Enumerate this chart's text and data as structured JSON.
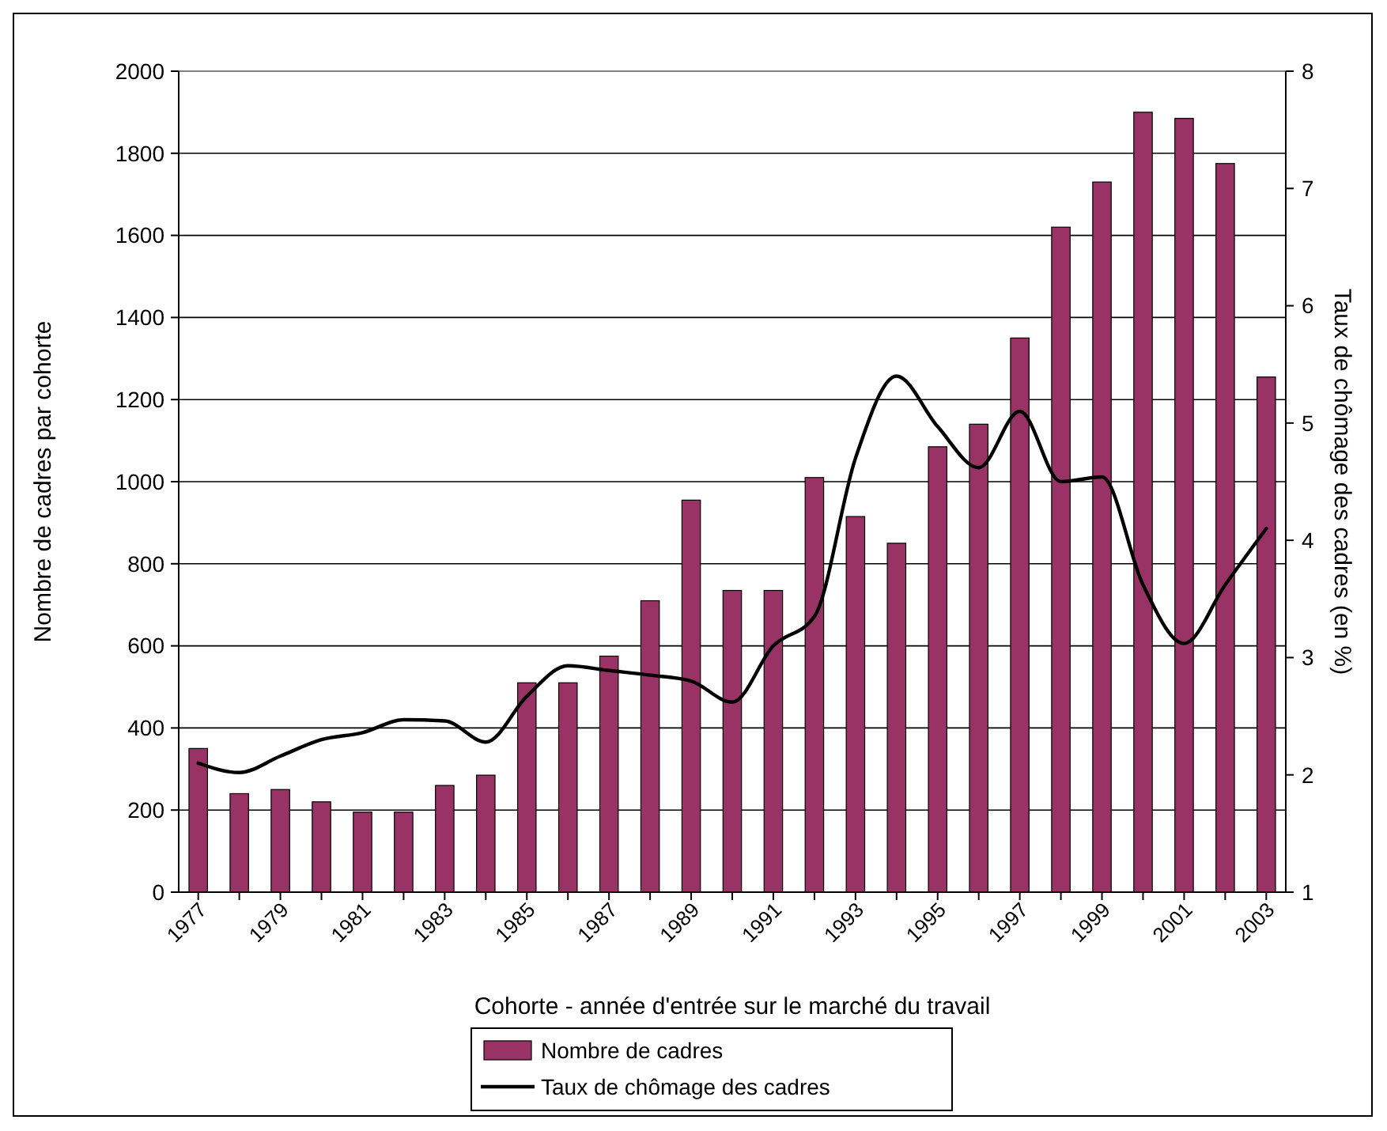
{
  "chart_data": {
    "type": "bar",
    "xlabel": "Cohorte - année d'entrée sur le marché du travail",
    "ylabel": "Nombre de cadres par cohorte",
    "y2label": "Taux de chômage des cadres (en %)",
    "categories": [
      "1977",
      null,
      "1979",
      null,
      "1981",
      null,
      "1983",
      null,
      "1985",
      null,
      "1987",
      null,
      "1989",
      null,
      "1991",
      null,
      "1993",
      null,
      "1995",
      null,
      "1997",
      null,
      "1999",
      null,
      "2001",
      null,
      "2003"
    ],
    "series": [
      {
        "name": "Nombre de cadres",
        "color": "#993366",
        "values": [
          350,
          240,
          250,
          220,
          195,
          195,
          260,
          285,
          510,
          510,
          575,
          710,
          955,
          735,
          735,
          1010,
          915,
          850,
          1085,
          1140,
          1350,
          1620,
          1730,
          1900,
          1885,
          1775,
          1255
        ]
      },
      {
        "name": "Taux de chômage des cadres",
        "type": "line",
        "axis": "y2",
        "color": "#000000",
        "values": [
          2.1,
          2.02,
          2.16,
          2.3,
          2.36,
          2.47,
          2.46,
          2.28,
          2.67,
          2.93,
          2.89,
          2.85,
          2.8,
          2.62,
          3.1,
          3.35,
          4.7,
          5.4,
          4.97,
          4.62,
          5.1,
          4.5,
          4.54,
          3.62,
          3.12,
          3.62,
          4.1
        ]
      }
    ],
    "ylim": [
      0,
      2000
    ],
    "yticks": [
      0,
      200,
      400,
      600,
      800,
      1000,
      1200,
      1400,
      1600,
      1800,
      2000
    ],
    "y2lim": [
      1,
      8
    ],
    "y2ticks": [
      1,
      2,
      3,
      4,
      5,
      6,
      7,
      8
    ],
    "grid": "y",
    "legend": "bottom",
    "marker": "none",
    "line_style": "solid"
  }
}
